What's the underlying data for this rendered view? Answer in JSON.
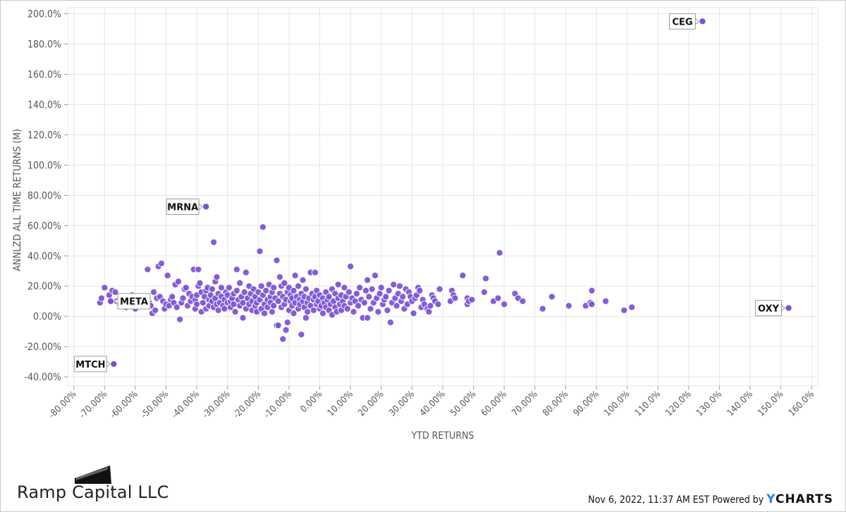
{
  "footer": {
    "timestamp": "Nov 6, 2022, 11:37 AM EST",
    "powered_by": "Powered by",
    "provider_y": "Y",
    "provider_rest": "CHARTS"
  },
  "brand": {
    "name": "Ramp Capital LLC",
    "icon": "ramp-logo"
  },
  "colors": {
    "point": "#7b4fd6",
    "point_stroke": "#ffffff",
    "grid": "#e6e6e6",
    "axis_text": "#555555",
    "provider_accent": "#2f7fe0"
  },
  "chart_data": {
    "type": "scatter",
    "title": "",
    "xlabel": "YTD RETURNS",
    "ylabel": "ANNLZD ALL TIME RETURNS (M)",
    "xlim": [
      -82,
      162
    ],
    "ylim": [
      -46,
      204
    ],
    "grid": true,
    "x_ticks": [
      "-80.00%",
      "-70.00%",
      "-60.00%",
      "-50.00%",
      "-40.00%",
      "-30.00%",
      "-20.00%",
      "-10.00%",
      "0.00%",
      "10.00%",
      "20.00%",
      "30.00%",
      "40.00%",
      "50.00%",
      "60.00%",
      "70.00%",
      "80.00%",
      "90.00%",
      "100.0%",
      "110.0%",
      "120.0%",
      "130.0%",
      "140.0%",
      "150.0%",
      "160.0%"
    ],
    "x_tick_values": [
      -80,
      -70,
      -60,
      -50,
      -40,
      -30,
      -20,
      -10,
      0,
      10,
      20,
      30,
      40,
      50,
      60,
      70,
      80,
      90,
      100,
      110,
      120,
      130,
      140,
      150,
      160
    ],
    "y_ticks": [
      "200.0%",
      "180.0%",
      "160.0%",
      "140.0%",
      "120.0%",
      "100.0%",
      "80.00%",
      "60.00%",
      "40.00%",
      "20.00%",
      "0.00%",
      "-20.00%",
      "-40.00%"
    ],
    "y_tick_values": [
      200,
      180,
      160,
      140,
      120,
      100,
      80,
      60,
      40,
      20,
      0,
      -20,
      -40
    ],
    "labeled_points": [
      {
        "label": "CEG",
        "x": 124.5,
        "y": 195.0,
        "side": "left"
      },
      {
        "label": "MRNA",
        "x": -37.0,
        "y": 72.5,
        "side": "left"
      },
      {
        "label": "OXY",
        "x": 152.5,
        "y": 5.5,
        "side": "left"
      },
      {
        "label": "META",
        "x": -68.0,
        "y": 10.0,
        "side": "right"
      },
      {
        "label": "MTCH",
        "x": -67.0,
        "y": -31.5,
        "side": "left"
      }
    ],
    "points": [
      [
        -71.5,
        9
      ],
      [
        -71,
        12
      ],
      [
        -70,
        19
      ],
      [
        -68.5,
        14
      ],
      [
        -67.5,
        17
      ],
      [
        -66.5,
        16
      ],
      [
        -66,
        10
      ],
      [
        -65,
        8
      ],
      [
        -64,
        12
      ],
      [
        -63,
        6
      ],
      [
        -62,
        11
      ],
      [
        -61,
        14
      ],
      [
        -60.5,
        9
      ],
      [
        -60,
        5
      ],
      [
        -59.5,
        12
      ],
      [
        -59,
        8
      ],
      [
        -58,
        10
      ],
      [
        -57,
        13
      ],
      [
        -56,
        31
      ],
      [
        -55.5,
        9
      ],
      [
        -55,
        7
      ],
      [
        -54.5,
        2
      ],
      [
        -54,
        16
      ],
      [
        -53.5,
        4
      ],
      [
        -53,
        12
      ],
      [
        -52.5,
        33
      ],
      [
        -52,
        13
      ],
      [
        -51.5,
        35
      ],
      [
        -51,
        10
      ],
      [
        -50.5,
        5
      ],
      [
        -50,
        8
      ],
      [
        -49.5,
        27
      ],
      [
        -49,
        7
      ],
      [
        -48.5,
        11
      ],
      [
        -48,
        13
      ],
      [
        -47.5,
        9
      ],
      [
        -47,
        21
      ],
      [
        -46.5,
        6
      ],
      [
        -46,
        23
      ],
      [
        -45.5,
        -2
      ],
      [
        -45,
        9
      ],
      [
        -44.5,
        12
      ],
      [
        -44,
        18
      ],
      [
        -43.5,
        19
      ],
      [
        -43,
        7
      ],
      [
        -42.5,
        15
      ],
      [
        -42,
        10
      ],
      [
        -41.5,
        13
      ],
      [
        -41,
        31
      ],
      [
        -40.5,
        5
      ],
      [
        -40.5,
        11
      ],
      [
        -40,
        8
      ],
      [
        -40,
        14
      ],
      [
        -39.5,
        31
      ],
      [
        -39.5,
        20
      ],
      [
        -39,
        22
      ],
      [
        -38.5,
        3
      ],
      [
        -38.5,
        16
      ],
      [
        -38,
        9
      ],
      [
        -37.5,
        13
      ],
      [
        -37,
        17
      ],
      [
        -37,
        5
      ],
      [
        -36.5,
        19
      ],
      [
        -36,
        11
      ],
      [
        -36,
        7
      ],
      [
        -35.5,
        14
      ],
      [
        -35,
        10
      ],
      [
        -35,
        18
      ],
      [
        -34.5,
        6
      ],
      [
        -34.5,
        49
      ],
      [
        -34,
        23
      ],
      [
        -34,
        12
      ],
      [
        -33.5,
        8
      ],
      [
        -33.5,
        26
      ],
      [
        -33,
        15
      ],
      [
        -33,
        4
      ],
      [
        -32.5,
        9
      ],
      [
        -32,
        13
      ],
      [
        -32,
        19
      ],
      [
        -31.5,
        7
      ],
      [
        -31,
        11
      ],
      [
        -31,
        5
      ],
      [
        -30.5,
        16
      ],
      [
        -30,
        9
      ],
      [
        -30,
        14
      ],
      [
        -29.5,
        19
      ],
      [
        -29,
        6
      ],
      [
        -29,
        10
      ],
      [
        -28.5,
        12
      ],
      [
        -28,
        15
      ],
      [
        -28,
        8
      ],
      [
        -27.5,
        3
      ],
      [
        -27,
        31
      ],
      [
        -27,
        17
      ],
      [
        -26.5,
        11
      ],
      [
        -26,
        7
      ],
      [
        -26,
        22
      ],
      [
        -25.5,
        13
      ],
      [
        -25,
        9
      ],
      [
        -25,
        -1
      ],
      [
        -24.5,
        16
      ],
      [
        -24,
        29
      ],
      [
        -24,
        5
      ],
      [
        -23.5,
        12
      ],
      [
        -23,
        20
      ],
      [
        -23,
        8
      ],
      [
        -22.5,
        15
      ],
      [
        -22,
        10
      ],
      [
        -22,
        4
      ],
      [
        -21.5,
        18
      ],
      [
        -21,
        7
      ],
      [
        -21,
        13
      ],
      [
        -20.5,
        3
      ],
      [
        -20.5,
        9
      ],
      [
        -20,
        16
      ],
      [
        -19.5,
        11
      ],
      [
        -19.5,
        43
      ],
      [
        -19,
        5
      ],
      [
        -19,
        20
      ],
      [
        -18.5,
        59
      ],
      [
        -18.5,
        14
      ],
      [
        -18,
        8
      ],
      [
        -18,
        2
      ],
      [
        -17.5,
        17
      ],
      [
        -17,
        11
      ],
      [
        -17,
        6
      ],
      [
        -16.5,
        21
      ],
      [
        -16,
        13
      ],
      [
        -16,
        9
      ],
      [
        -15.5,
        3
      ],
      [
        -15.5,
        16
      ],
      [
        -15,
        19
      ],
      [
        -15,
        7
      ],
      [
        -14.5,
        12
      ],
      [
        -14,
        37
      ],
      [
        -14,
        -6
      ],
      [
        -13.5,
        -6
      ],
      [
        -13.5,
        10
      ],
      [
        -13,
        15
      ],
      [
        -13,
        26
      ],
      [
        -12.5,
        6
      ],
      [
        -12.5,
        20
      ],
      [
        -12,
        13
      ],
      [
        -12,
        -15
      ],
      [
        -11.5,
        8
      ],
      [
        -11.5,
        22
      ],
      [
        -11,
        11
      ],
      [
        -11,
        -9
      ],
      [
        -10.5,
        -4
      ],
      [
        -10.5,
        16
      ],
      [
        -10,
        4
      ],
      [
        -10,
        19
      ],
      [
        -9.5,
        10
      ],
      [
        -9.5,
        14
      ],
      [
        -9,
        7
      ],
      [
        -9,
        12
      ],
      [
        -8.5,
        17
      ],
      [
        -8.5,
        2
      ],
      [
        -8,
        9
      ],
      [
        -8,
        27
      ],
      [
        -7.5,
        13
      ],
      [
        -7,
        5
      ],
      [
        -7,
        20
      ],
      [
        -6.5,
        11
      ],
      [
        -6.5,
        8
      ],
      [
        -6,
        -12
      ],
      [
        -6,
        15
      ],
      [
        -5.5,
        24
      ],
      [
        -5.5,
        10
      ],
      [
        -5,
        6
      ],
      [
        -5,
        13
      ],
      [
        -4.5,
        18
      ],
      [
        -4.5,
        -1
      ],
      [
        -4,
        9
      ],
      [
        -4,
        3
      ],
      [
        -3.5,
        12
      ],
      [
        -3,
        29
      ],
      [
        -3,
        7
      ],
      [
        -2.5,
        15
      ],
      [
        -2,
        11
      ],
      [
        -2,
        4
      ],
      [
        -1.5,
        13
      ],
      [
        -1.5,
        29
      ],
      [
        -1,
        8
      ],
      [
        -1,
        17
      ],
      [
        -0.5,
        10
      ],
      [
        0,
        5
      ],
      [
        0,
        14
      ],
      [
        0.5,
        7
      ],
      [
        1,
        12
      ],
      [
        1,
        2
      ],
      [
        1.5,
        9
      ],
      [
        2,
        16
      ],
      [
        2,
        6
      ],
      [
        2.5,
        11
      ],
      [
        3,
        4
      ],
      [
        3,
        13
      ],
      [
        3.5,
        8
      ],
      [
        4,
        18
      ],
      [
        4,
        1
      ],
      [
        4.5,
        10
      ],
      [
        5,
        15
      ],
      [
        5,
        6
      ],
      [
        5.5,
        3
      ],
      [
        6,
        12
      ],
      [
        6,
        21
      ],
      [
        6.5,
        8
      ],
      [
        7,
        14
      ],
      [
        7,
        4
      ],
      [
        7.5,
        10
      ],
      [
        8,
        19
      ],
      [
        8,
        7
      ],
      [
        8.5,
        13
      ],
      [
        9,
        5
      ],
      [
        9.5,
        16
      ],
      [
        10,
        33
      ],
      [
        10,
        9
      ],
      [
        10.5,
        12
      ],
      [
        11,
        3
      ],
      [
        11.5,
        10
      ],
      [
        12,
        15
      ],
      [
        12.5,
        7
      ],
      [
        13,
        19
      ],
      [
        13.5,
        11
      ],
      [
        14,
        -1
      ],
      [
        14.5,
        9
      ],
      [
        15,
        17
      ],
      [
        15.5,
        24
      ],
      [
        15.5,
        -1
      ],
      [
        16,
        13
      ],
      [
        16.5,
        5
      ],
      [
        17,
        18
      ],
      [
        17.5,
        9
      ],
      [
        18,
        27
      ],
      [
        18.5,
        12
      ],
      [
        19,
        3
      ],
      [
        19.5,
        15
      ],
      [
        20,
        19
      ],
      [
        20.5,
        8
      ],
      [
        21,
        11
      ],
      [
        21.5,
        13
      ],
      [
        22,
        4
      ],
      [
        22.5,
        17
      ],
      [
        23,
        -4
      ],
      [
        23.5,
        9
      ],
      [
        24,
        21
      ],
      [
        24.5,
        12
      ],
      [
        25,
        7
      ],
      [
        25.5,
        15
      ],
      [
        26,
        20
      ],
      [
        26.5,
        10
      ],
      [
        27,
        13
      ],
      [
        27.5,
        5
      ],
      [
        28,
        18
      ],
      [
        28.5,
        8
      ],
      [
        29,
        16
      ],
      [
        29.5,
        13
      ],
      [
        30,
        10
      ],
      [
        30.5,
        2
      ],
      [
        31,
        12
      ],
      [
        31.5,
        14
      ],
      [
        32,
        19
      ],
      [
        32.5,
        17
      ],
      [
        33,
        6
      ],
      [
        33.5,
        11
      ],
      [
        34,
        8
      ],
      [
        35,
        5
      ],
      [
        35.5,
        3
      ],
      [
        36,
        7
      ],
      [
        36.5,
        14
      ],
      [
        37,
        12
      ],
      [
        37.5,
        10
      ],
      [
        38.5,
        8
      ],
      [
        39,
        18
      ],
      [
        42.5,
        10
      ],
      [
        43,
        17
      ],
      [
        43.5,
        14
      ],
      [
        44,
        12
      ],
      [
        46.5,
        27
      ],
      [
        48,
        12
      ],
      [
        48,
        8
      ],
      [
        48.5,
        10
      ],
      [
        49.5,
        11
      ],
      [
        53.5,
        16
      ],
      [
        54,
        25
      ],
      [
        56.5,
        10
      ],
      [
        58,
        12
      ],
      [
        58.5,
        42
      ],
      [
        60,
        8
      ],
      [
        63.5,
        15
      ],
      [
        64.5,
        12
      ],
      [
        66,
        10
      ],
      [
        72.5,
        5
      ],
      [
        75.5,
        13
      ],
      [
        81,
        7
      ],
      [
        86.5,
        7
      ],
      [
        88,
        9
      ],
      [
        88.5,
        17
      ],
      [
        88.5,
        8
      ],
      [
        93,
        10
      ],
      [
        99,
        4
      ],
      [
        101.5,
        6
      ]
    ]
  }
}
